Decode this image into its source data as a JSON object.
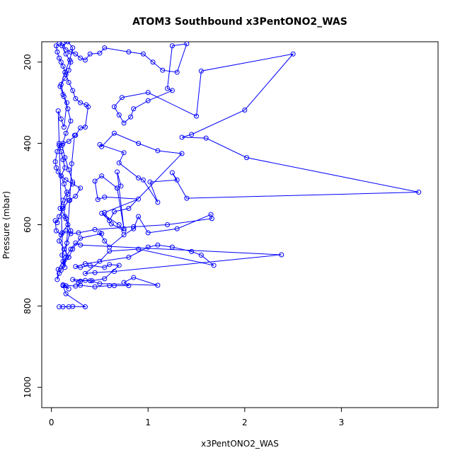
{
  "chart_data": {
    "type": "scatter",
    "title": "ATOM3 Southbound x3PentONO2_WAS",
    "xlabel": "x3PentONO2_WAS",
    "ylabel": "Pressure (mbar)",
    "xlim": [
      -0.1,
      4.0
    ],
    "ylim": [
      1050,
      150
    ],
    "y_reversed": true,
    "x_ticks": [
      0,
      1,
      2,
      3
    ],
    "x_tick_labels": [
      "0",
      "1",
      "2",
      "3"
    ],
    "y_ticks": [
      200,
      400,
      600,
      800,
      1000
    ],
    "y_tick_labels": [
      "200",
      "400",
      "600",
      "800",
      "1000"
    ],
    "grid": false,
    "legend": "none",
    "style": "points connected by lines (open circles)",
    "colors": {
      "series": "#0000ff",
      "axis": "#000000",
      "background": "#ffffff"
    },
    "series": [
      {
        "values": [
          [
            0.08,
            802
          ],
          [
            0.12,
            802
          ],
          [
            0.18,
            802
          ],
          [
            0.22,
            801
          ],
          [
            0.35,
            802
          ],
          [
            0.15,
            770
          ],
          [
            0.12,
            750
          ],
          [
            0.15,
            750
          ],
          [
            0.18,
            758
          ],
          [
            0.12,
            748
          ],
          [
            0.25,
            751
          ],
          [
            0.3,
            749
          ],
          [
            0.45,
            753
          ],
          [
            0.6,
            750
          ],
          [
            0.65,
            750
          ],
          [
            0.8,
            750
          ],
          [
            0.75,
            742
          ],
          [
            0.85,
            730
          ],
          [
            1.1,
            749
          ],
          [
            0.5,
            745
          ],
          [
            0.4,
            738
          ],
          [
            0.35,
            737
          ],
          [
            0.3,
            739
          ],
          [
            0.28,
            742
          ],
          [
            0.22,
            735
          ],
          [
            0.42,
            738
          ],
          [
            0.55,
            733
          ],
          [
            0.7,
            700
          ],
          [
            0.6,
            698
          ],
          [
            0.55,
            705
          ],
          [
            0.4,
            700
          ],
          [
            0.3,
            705
          ],
          [
            0.25,
            703
          ],
          [
            0.35,
            696
          ],
          [
            0.8,
            680
          ],
          [
            1.0,
            655
          ],
          [
            1.1,
            650
          ],
          [
            1.25,
            655
          ],
          [
            1.45,
            666
          ],
          [
            1.55,
            675
          ],
          [
            1.68,
            700
          ],
          [
            0.9,
            660
          ],
          [
            0.6,
            665
          ],
          [
            0.5,
            690
          ],
          [
            0.35,
            720
          ],
          [
            0.45,
            718
          ],
          [
            0.65,
            715
          ],
          [
            2.38,
            674
          ],
          [
            0.3,
            650
          ],
          [
            0.25,
            645
          ],
          [
            0.2,
            660
          ],
          [
            0.15,
            680
          ],
          [
            0.12,
            700
          ],
          [
            0.1,
            712
          ],
          [
            0.08,
            720
          ],
          [
            0.06,
            735
          ],
          [
            0.07,
            710
          ],
          [
            0.12,
            690
          ],
          [
            0.18,
            680
          ],
          [
            0.22,
            660
          ],
          [
            0.3,
            633
          ],
          [
            0.52,
            622
          ],
          [
            0.5,
            620
          ],
          [
            0.55,
            640
          ],
          [
            0.6,
            655
          ],
          [
            0.75,
            625
          ],
          [
            0.85,
            610
          ],
          [
            0.9,
            580
          ],
          [
            1.0,
            620
          ],
          [
            1.3,
            610
          ],
          [
            1.65,
            575
          ],
          [
            1.66,
            585
          ],
          [
            1.2,
            600
          ],
          [
            0.85,
            605
          ],
          [
            0.45,
            612
          ],
          [
            0.28,
            620
          ],
          [
            0.2,
            622
          ],
          [
            0.15,
            615
          ],
          [
            0.1,
            625
          ],
          [
            0.05,
            615
          ],
          [
            0.04,
            590
          ],
          [
            0.06,
            595
          ],
          [
            0.08,
            580
          ],
          [
            0.12,
            560
          ],
          [
            0.18,
            540
          ],
          [
            0.25,
            530
          ],
          [
            0.3,
            510
          ],
          [
            0.22,
            500
          ],
          [
            0.15,
            490
          ],
          [
            0.1,
            480
          ],
          [
            0.07,
            470
          ],
          [
            0.05,
            460
          ],
          [
            0.04,
            445
          ],
          [
            0.06,
            420
          ],
          [
            0.08,
            405
          ],
          [
            0.12,
            400
          ],
          [
            0.18,
            395
          ],
          [
            0.25,
            380
          ],
          [
            0.3,
            362
          ],
          [
            0.35,
            360
          ],
          [
            0.38,
            310
          ],
          [
            0.36,
            305
          ],
          [
            0.3,
            300
          ],
          [
            0.25,
            290
          ],
          [
            0.22,
            270
          ],
          [
            0.18,
            250
          ],
          [
            0.15,
            230
          ],
          [
            0.12,
            210
          ],
          [
            0.1,
            200
          ],
          [
            0.08,
            190
          ],
          [
            0.06,
            175
          ],
          [
            0.05,
            160
          ],
          [
            0.08,
            155
          ],
          [
            0.12,
            155
          ],
          [
            0.15,
            170
          ],
          [
            0.2,
            175
          ],
          [
            0.25,
            180
          ],
          [
            0.3,
            190
          ],
          [
            0.35,
            195
          ],
          [
            0.4,
            180
          ],
          [
            0.5,
            178
          ],
          [
            0.55,
            165
          ],
          [
            0.8,
            175
          ],
          [
            0.95,
            180
          ],
          [
            1.05,
            200
          ],
          [
            1.15,
            220
          ],
          [
            1.3,
            225
          ],
          [
            1.4,
            155
          ],
          [
            1.25,
            160
          ],
          [
            1.2,
            265
          ],
          [
            1.25,
            270
          ],
          [
            1.0,
            295
          ],
          [
            0.85,
            315
          ],
          [
            0.82,
            335
          ],
          [
            0.75,
            350
          ],
          [
            0.7,
            330
          ],
          [
            0.65,
            310
          ],
          [
            0.73,
            287
          ],
          [
            1.0,
            275
          ],
          [
            1.5,
            333
          ],
          [
            1.55,
            222
          ],
          [
            2.5,
            180
          ],
          [
            2.0,
            318
          ],
          [
            1.45,
            378
          ],
          [
            1.35,
            385
          ],
          [
            1.6,
            387
          ],
          [
            2.02,
            435
          ],
          [
            3.8,
            520
          ],
          [
            1.4,
            535
          ],
          [
            1.25,
            472
          ],
          [
            1.3,
            490
          ],
          [
            1.02,
            495
          ],
          [
            1.1,
            545
          ],
          [
            0.95,
            490
          ],
          [
            0.9,
            485
          ],
          [
            0.7,
            448
          ],
          [
            0.75,
            423
          ],
          [
            0.5,
            403
          ],
          [
            0.52,
            408
          ],
          [
            0.65,
            375
          ],
          [
            0.9,
            400
          ],
          [
            1.1,
            418
          ],
          [
            1.35,
            425
          ],
          [
            0.8,
            560
          ],
          [
            0.65,
            568
          ],
          [
            0.6,
            590
          ],
          [
            0.52,
            572
          ],
          [
            0.7,
            600
          ],
          [
            0.75,
            615
          ],
          [
            0.62,
            598
          ],
          [
            0.55,
            570
          ],
          [
            0.9,
            537
          ],
          [
            0.55,
            532
          ],
          [
            0.48,
            538
          ],
          [
            0.45,
            493
          ],
          [
            0.52,
            480
          ],
          [
            0.68,
            510
          ],
          [
            0.72,
            505
          ],
          [
            0.68,
            470
          ],
          [
            0.75,
            610
          ],
          [
            0.68,
            510
          ]
        ],
        "dense_core": [
          [
            0.08,
            400
          ],
          [
            0.1,
            420
          ],
          [
            0.12,
            440
          ],
          [
            0.14,
            460
          ],
          [
            0.1,
            480
          ],
          [
            0.13,
            500
          ],
          [
            0.16,
            520
          ],
          [
            0.12,
            540
          ],
          [
            0.09,
            560
          ],
          [
            0.14,
            580
          ],
          [
            0.17,
            600
          ],
          [
            0.11,
            620
          ],
          [
            0.08,
            640
          ],
          [
            0.13,
            660
          ],
          [
            0.18,
            680
          ],
          [
            0.12,
            700
          ],
          [
            0.07,
            320
          ],
          [
            0.1,
            340
          ],
          [
            0.13,
            360
          ],
          [
            0.16,
            300
          ],
          [
            0.12,
            280
          ],
          [
            0.09,
            260
          ],
          [
            0.14,
            240
          ],
          [
            0.18,
            220
          ],
          [
            0.2,
            200
          ],
          [
            0.15,
            180
          ],
          [
            0.11,
            160
          ],
          [
            0.17,
            150
          ],
          [
            0.22,
            165
          ],
          [
            0.19,
            195
          ],
          [
            0.14,
            225
          ],
          [
            0.1,
            255
          ],
          [
            0.13,
            285
          ],
          [
            0.17,
            315
          ],
          [
            0.2,
            345
          ],
          [
            0.15,
            375
          ],
          [
            0.11,
            405
          ],
          [
            0.14,
            435
          ],
          [
            0.18,
            465
          ],
          [
            0.22,
            495
          ],
          [
            0.17,
            525
          ],
          [
            0.12,
            555
          ],
          [
            0.15,
            585
          ],
          [
            0.2,
            615
          ],
          [
            0.16,
            645
          ],
          [
            0.11,
            675
          ],
          [
            0.14,
            705
          ],
          [
            0.19,
            540
          ],
          [
            0.21,
            450
          ],
          [
            0.24,
            380
          ]
        ]
      }
    ]
  }
}
